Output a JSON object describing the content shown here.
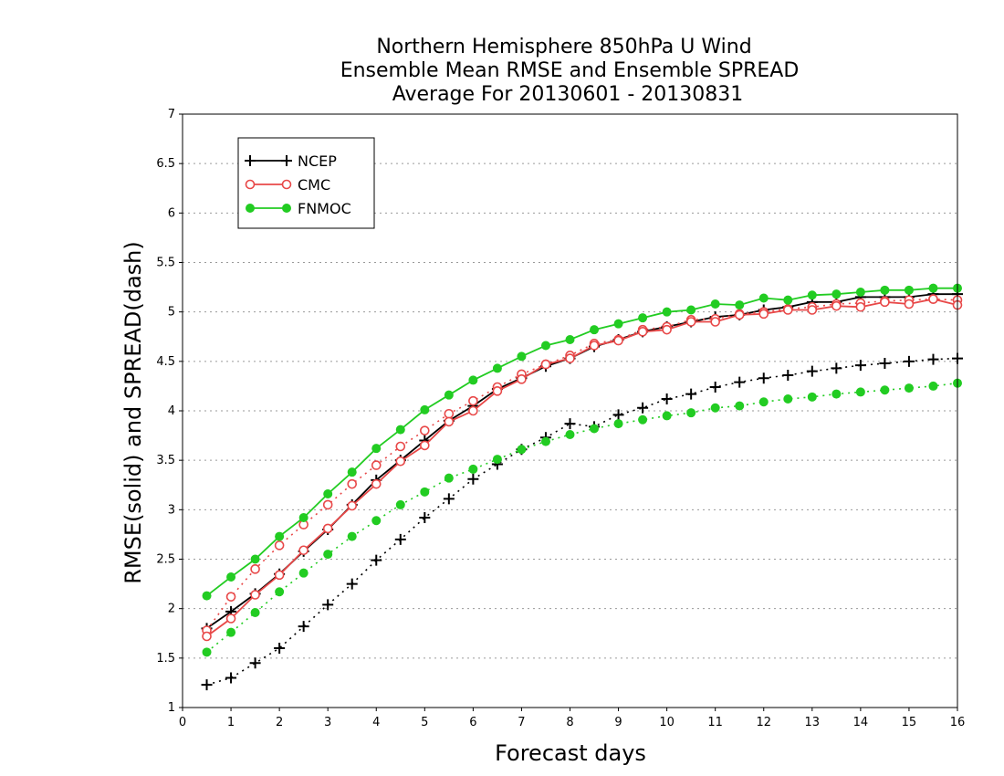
{
  "chart_data": {
    "type": "line",
    "title": [
      "Northern Hemisphere 850hPa U Wind",
      "Ensemble Mean RMSE and Ensemble SPREAD",
      "Average For 20130601 - 20130831"
    ],
    "xlabel": "Forecast days",
    "ylabel": "RMSE(solid) and SPREAD(dash)",
    "xlim": [
      0,
      16
    ],
    "ylim": [
      1,
      7
    ],
    "xticks": [
      "0",
      "1",
      "2",
      "3",
      "4",
      "5",
      "6",
      "7",
      "8",
      "9",
      "10",
      "11",
      "12",
      "13",
      "14",
      "15",
      "16"
    ],
    "yticks": [
      "1",
      "1.5",
      "2",
      "2.5",
      "3",
      "3.5",
      "4",
      "4.5",
      "5",
      "5.5",
      "6",
      "6.5",
      "7"
    ],
    "grid": "horizontal dotted",
    "legend_position": "top-left",
    "x": [
      0.5,
      1,
      1.5,
      2,
      2.5,
      3,
      3.5,
      4,
      4.5,
      5,
      5.5,
      6,
      6.5,
      7,
      7.5,
      8,
      8.5,
      9,
      9.5,
      10,
      10.5,
      11,
      11.5,
      12,
      12.5,
      13,
      13.5,
      14,
      14.5,
      15,
      15.5,
      16
    ],
    "series": [
      {
        "name": "NCEP",
        "color": "#000000",
        "marker": "plus",
        "rmse": [
          1.8,
          1.97,
          2.15,
          2.35,
          2.58,
          2.8,
          3.05,
          3.3,
          3.5,
          3.7,
          3.9,
          4.05,
          4.22,
          4.33,
          4.45,
          4.53,
          4.65,
          4.72,
          4.8,
          4.85,
          4.9,
          4.95,
          4.97,
          5.02,
          5.05,
          5.1,
          5.1,
          5.15,
          5.15,
          5.15,
          5.18,
          5.18
        ],
        "spread": [
          1.23,
          1.3,
          1.45,
          1.6,
          1.82,
          2.04,
          2.25,
          2.49,
          2.7,
          2.92,
          3.11,
          3.31,
          3.46,
          3.61,
          3.73,
          3.87,
          3.84,
          3.96,
          4.03,
          4.12,
          4.17,
          4.24,
          4.29,
          4.33,
          4.36,
          4.4,
          4.43,
          4.46,
          4.48,
          4.5,
          4.52,
          4.53
        ]
      },
      {
        "name": "CMC",
        "color": "#e84848",
        "marker": "open-circle",
        "rmse": [
          1.72,
          1.9,
          2.14,
          2.34,
          2.59,
          2.81,
          3.04,
          3.26,
          3.49,
          3.65,
          3.89,
          4.0,
          4.2,
          4.32,
          4.47,
          4.53,
          4.66,
          4.71,
          4.8,
          4.82,
          4.9,
          4.9,
          4.97,
          4.98,
          5.02,
          5.02,
          5.06,
          5.05,
          5.1,
          5.08,
          5.13,
          5.07
        ],
        "spread": [
          1.78,
          2.12,
          2.4,
          2.64,
          2.85,
          3.05,
          3.26,
          3.45,
          3.64,
          3.8,
          3.97,
          4.1,
          4.24,
          4.37,
          4.47,
          4.56,
          4.68,
          4.72,
          4.82,
          4.85,
          4.92,
          4.93,
          4.98,
          5.0,
          5.03,
          5.05,
          5.08,
          5.09,
          5.11,
          5.12,
          5.13,
          5.12
        ]
      },
      {
        "name": "FNMOC",
        "color": "#22cc22",
        "marker": "filled-circle",
        "rmse": [
          2.13,
          2.32,
          2.5,
          2.73,
          2.92,
          3.16,
          3.38,
          3.62,
          3.81,
          4.01,
          4.16,
          4.31,
          4.43,
          4.55,
          4.66,
          4.72,
          4.82,
          4.88,
          4.94,
          5.0,
          5.02,
          5.08,
          5.07,
          5.14,
          5.12,
          5.17,
          5.18,
          5.2,
          5.22,
          5.22,
          5.24,
          5.24
        ],
        "spread": [
          1.56,
          1.76,
          1.96,
          2.17,
          2.36,
          2.55,
          2.73,
          2.89,
          3.05,
          3.18,
          3.32,
          3.41,
          3.51,
          3.61,
          3.69,
          3.76,
          3.82,
          3.87,
          3.91,
          3.95,
          3.98,
          4.03,
          4.05,
          4.09,
          4.12,
          4.14,
          4.17,
          4.19,
          4.21,
          4.23,
          4.25,
          4.28
        ]
      }
    ]
  }
}
